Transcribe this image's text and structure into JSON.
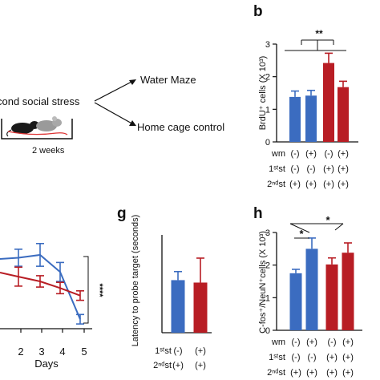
{
  "panel_letters": {
    "b": "b",
    "g": "g",
    "h": "h"
  },
  "schematic": {
    "stress_text": "cond social stress",
    "branch_top": "Water Maze",
    "branch_bottom": "Home cage control",
    "duration": "2 weeks"
  },
  "colors": {
    "blue": "#3b6cc0",
    "red": "#b81d24"
  },
  "chart_data": [
    {
      "id": "b",
      "type": "bar",
      "ylabel": "BrdU⁺ cells (X 10³)",
      "ylim": [
        0,
        3
      ],
      "yticks": [
        "0",
        "1",
        "2",
        "3"
      ],
      "values": [
        1.38,
        1.42,
        2.42,
        1.68
      ],
      "errors": [
        0.18,
        0.16,
        0.3,
        0.18
      ],
      "bar_colors": [
        "blue",
        "blue",
        "red",
        "red"
      ],
      "significance": "**",
      "condition_rows": [
        {
          "label": "wm",
          "values": [
            "(-)",
            "(+)",
            "(-)",
            "(+)"
          ]
        },
        {
          "label": "1ˢᵗst",
          "values": [
            "(-)",
            "(-)",
            "(+)",
            "(+)"
          ]
        },
        {
          "label": "2ⁿᵈst",
          "values": [
            "(+)",
            "(+)",
            "(+)",
            "(+)"
          ]
        }
      ]
    },
    {
      "id": "maze",
      "type": "line",
      "xlabel": "Days",
      "x": [
        1,
        2,
        3,
        4,
        5
      ],
      "xticks": [
        "2",
        "3",
        "4",
        "5"
      ],
      "series": [
        {
          "color": "blue",
          "values": [
            null,
            0.75,
            0.78,
            0.6,
            0.1
          ],
          "errors": [
            null,
            0.09,
            0.12,
            0.1,
            0.05
          ]
        },
        {
          "color": "red",
          "values": [
            null,
            0.55,
            0.5,
            0.43,
            0.35
          ],
          "errors": [
            null,
            0.1,
            0.06,
            0.06,
            0.05
          ]
        }
      ],
      "significance": "****"
    },
    {
      "id": "g",
      "type": "bar",
      "ylabel": "Latency to probe target (seconds)",
      "values": [
        21.5,
        20.5
      ],
      "errors": [
        3.5,
        10
      ],
      "bar_colors": [
        "blue",
        "red"
      ],
      "condition_rows": [
        {
          "label": "1ˢᵗst",
          "values": [
            "(-)",
            "(+)"
          ]
        },
        {
          "label": "2ⁿᵈst",
          "values": [
            "(+)",
            "(+)"
          ]
        }
      ]
    },
    {
      "id": "h",
      "type": "bar",
      "ylabel": "C-fos⁺/NeuN⁺cells (X 10³)",
      "ylim": [
        0,
        3
      ],
      "yticks": [
        "0",
        "1",
        "2",
        "3"
      ],
      "values": [
        1.75,
        2.5,
        2.02,
        2.38
      ],
      "errors": [
        0.12,
        0.33,
        0.2,
        0.3
      ],
      "bar_colors": [
        "blue",
        "blue",
        "red",
        "red"
      ],
      "significance": [
        "*",
        "*"
      ],
      "condition_rows": [
        {
          "label": "wm",
          "values": [
            "(-)",
            "(+)",
            "(-)",
            "(+)"
          ]
        },
        {
          "label": "1ˢᵗst",
          "values": [
            "(-)",
            "(-)",
            "(+)",
            "(+)"
          ]
        },
        {
          "label": "2ⁿᵈst",
          "values": [
            "(+)",
            "(+)",
            "(+)",
            "(+)"
          ]
        }
      ]
    }
  ]
}
